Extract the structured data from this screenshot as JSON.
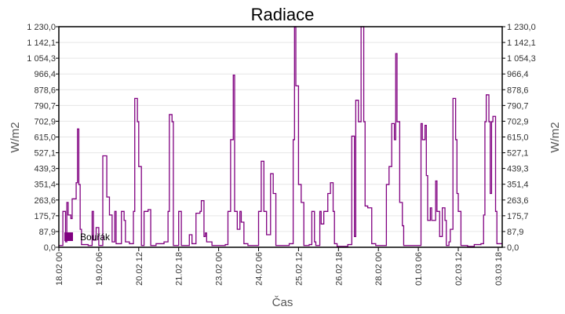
{
  "chart_data": {
    "type": "line",
    "title": "Radiace",
    "xlabel": "Čas",
    "ylabel": "W/m2",
    "ylabel_right": "W/m2",
    "x_unit": "hours since 18.02 00",
    "xlim": [
      0,
      333
    ],
    "ylim": [
      0,
      1230
    ],
    "grid": true,
    "legend_position": "bottom-left",
    "y_ticks": [
      0,
      87.9,
      175.7,
      263.6,
      351.4,
      439.3,
      527.1,
      615.0,
      702.9,
      790.7,
      878.6,
      966.4,
      1054.3,
      1142.1,
      1230.0
    ],
    "y_tick_labels": [
      "0,0",
      "87,9",
      "175,7",
      "263,6",
      "351,4",
      "439,3",
      "527,1",
      "615,0",
      "702,9",
      "790,7",
      "878,6",
      "966,4",
      "1 054,3",
      "1 142,1",
      "1 230,0"
    ],
    "x_ticks": [
      0,
      30,
      60,
      90,
      120,
      150,
      180,
      210,
      240,
      270,
      300,
      330
    ],
    "x_tick_labels": [
      "18.02 00",
      "19.02 06",
      "20.02 12",
      "21.02 18",
      "23.02 00",
      "24.02 06",
      "25.02 12",
      "26.02 18",
      "28.02 00",
      "01.03 06",
      "02.03 12",
      "03.03 18"
    ],
    "series": [
      {
        "name": "Bouřák",
        "color": "#800080",
        "x": [
          0,
          3,
          5,
          6,
          7,
          9,
          10,
          13,
          14,
          15,
          16,
          17,
          22,
          25,
          26,
          28,
          30,
          33,
          36,
          38,
          40,
          42,
          43,
          47,
          49,
          50,
          53,
          56,
          57,
          59,
          60,
          62,
          64,
          67,
          69,
          73,
          79,
          82,
          83,
          85,
          86,
          90,
          92,
          96,
          98,
          100,
          103,
          106,
          107,
          109,
          110,
          111,
          115,
          125,
          127,
          129,
          131,
          132,
          134,
          136,
          137,
          139,
          142,
          150,
          152,
          154,
          156,
          159,
          161,
          163,
          173,
          176,
          177,
          178,
          180,
          182,
          184,
          188,
          190,
          192,
          193,
          196,
          197,
          199,
          202,
          204,
          206,
          207,
          209,
          217,
          220,
          222,
          223,
          225,
          227,
          229,
          230,
          232,
          235,
          238,
          245,
          246,
          248,
          250,
          252,
          253,
          254,
          256,
          258,
          259,
          270,
          272,
          273,
          275,
          276,
          277,
          279,
          280,
          283,
          284,
          286,
          288,
          290,
          291,
          293,
          294,
          296,
          298,
          299,
          300,
          302,
          307,
          312,
          317,
          319,
          320,
          321,
          323,
          324,
          325,
          326,
          328,
          329,
          332
        ],
        "y": [
          10,
          200,
          30,
          250,
          180,
          160,
          270,
          360,
          660,
          350,
          100,
          15,
          10,
          200,
          40,
          110,
          10,
          510,
          280,
          180,
          30,
          200,
          20,
          200,
          150,
          30,
          20,
          200,
          830,
          700,
          450,
          10,
          200,
          210,
          10,
          20,
          30,
          200,
          740,
          700,
          10,
          200,
          10,
          10,
          70,
          20,
          190,
          200,
          260,
          60,
          80,
          30,
          10,
          15,
          200,
          600,
          960,
          200,
          100,
          200,
          140,
          20,
          10,
          200,
          480,
          200,
          70,
          410,
          300,
          10,
          20,
          600,
          1230,
          900,
          350,
          250,
          10,
          15,
          200,
          30,
          10,
          200,
          130,
          200,
          300,
          360,
          200,
          20,
          5,
          15,
          620,
          60,
          820,
          700,
          1230,
          700,
          230,
          220,
          20,
          10,
          10,
          350,
          450,
          690,
          600,
          1080,
          700,
          250,
          120,
          10,
          10,
          690,
          600,
          680,
          400,
          150,
          220,
          150,
          370,
          200,
          60,
          220,
          150,
          10,
          30,
          100,
          830,
          600,
          300,
          200,
          10,
          5,
          15,
          20,
          180,
          700,
          850,
          700,
          300,
          700,
          730,
          200,
          20,
          20
        ]
      }
    ]
  }
}
